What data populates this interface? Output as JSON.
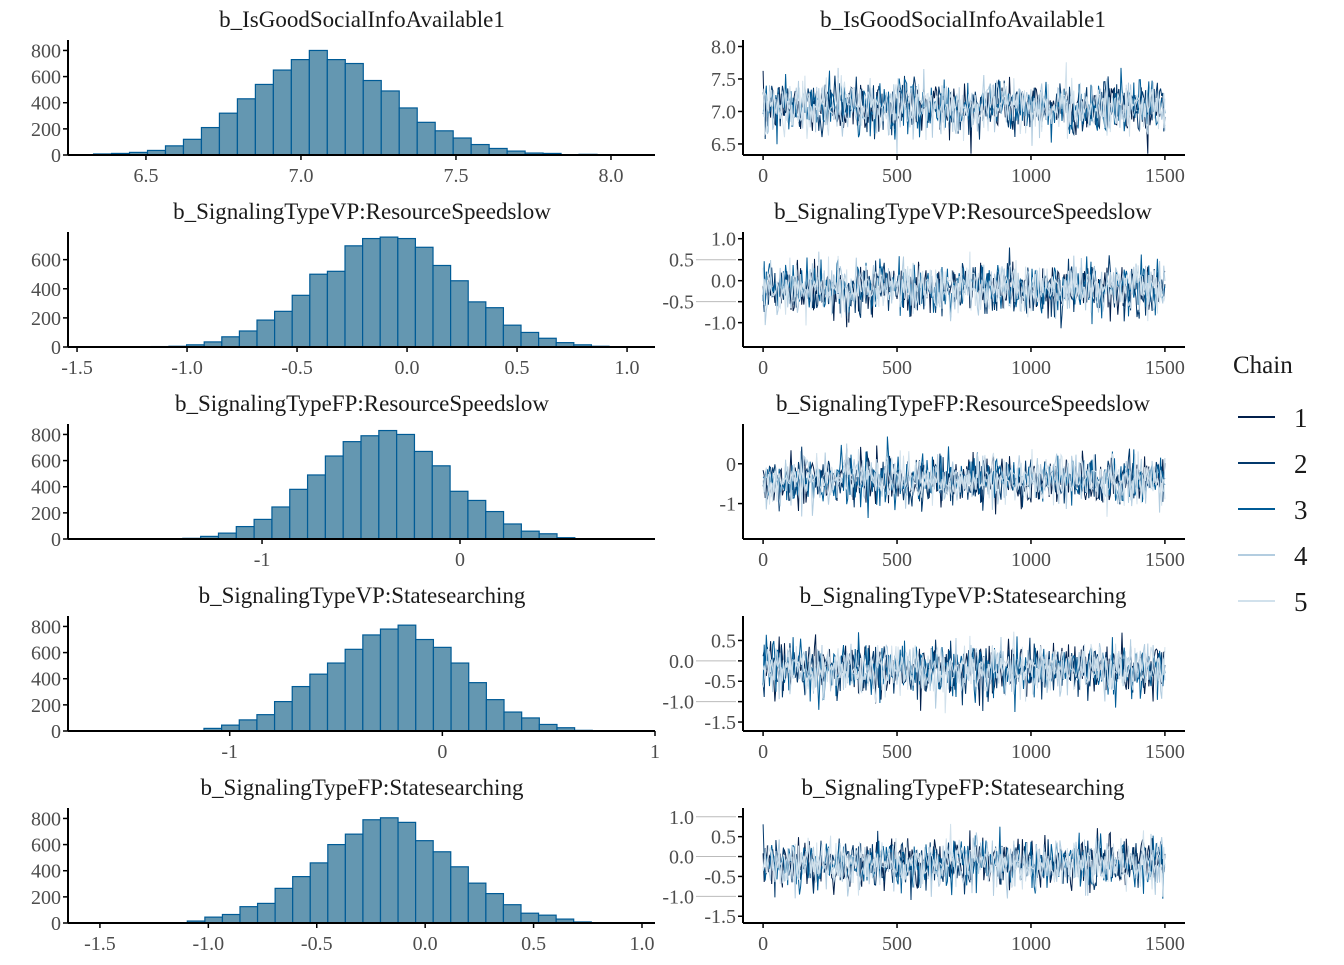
{
  "colors": {
    "hist_fill": "#6497b1",
    "hist_outline": "#005b96",
    "axis": "#000000",
    "chains": [
      "#011f4b",
      "#03396c",
      "#005b96",
      "#b3cde0",
      "#d1e1ec"
    ]
  },
  "legend": {
    "title": "Chain",
    "items": [
      "1",
      "2",
      "3",
      "4",
      "5"
    ],
    "placement": "right"
  },
  "chart_data": [
    {
      "type": "bar",
      "kind": "histogram",
      "title": "b_IsGoodSocialInfoAvailable1",
      "xlim": [
        6.255,
        8.142
      ],
      "xticks": [
        "6.5",
        "7.0",
        "7.5",
        "8.0"
      ],
      "ylim": [
        0,
        880
      ],
      "yticks": [
        "0",
        "200",
        "400",
        "600",
        "800"
      ],
      "bin_start": 6.331,
      "bin_width": 0.058,
      "counts": [
        8,
        12,
        20,
        35,
        70,
        120,
        210,
        320,
        430,
        540,
        650,
        730,
        800,
        730,
        700,
        570,
        490,
        360,
        250,
        185,
        130,
        80,
        50,
        30,
        15,
        12,
        3,
        5
      ]
    },
    {
      "type": "line",
      "kind": "trace",
      "title": "b_IsGoodSocialInfoAvailable1",
      "xlim": [
        -75,
        1575
      ],
      "xticks": [
        "0",
        "500",
        "1000",
        "1500"
      ],
      "ylim": [
        6.33,
        8.1
      ],
      "yticks": [
        "6.5",
        "7.0",
        "7.5",
        "8.0"
      ],
      "iterations": 1500,
      "chains": 5,
      "mean": 7.07,
      "sd": 0.2
    },
    {
      "type": "bar",
      "kind": "histogram",
      "title": "b_SignalingTypeVP:ResourceSpeedslow",
      "xlim": [
        -1.532,
        1.127
      ],
      "xticks": [
        "-1.5",
        "-1.0",
        "-0.5",
        "0.0",
        "0.5",
        "1.0"
      ],
      "ylim": [
        0,
        790
      ],
      "yticks": [
        "0",
        "200",
        "400",
        "600"
      ],
      "bin_start": -1.162,
      "bin_width": 0.08,
      "counts": [
        3,
        5,
        15,
        35,
        70,
        110,
        185,
        245,
        355,
        500,
        520,
        695,
        745,
        755,
        745,
        685,
        560,
        455,
        310,
        270,
        150,
        100,
        60,
        30,
        15,
        5
      ]
    },
    {
      "type": "line",
      "kind": "trace",
      "title": "b_SignalingTypeVP:ResourceSpeedslow",
      "xlim": [
        -75,
        1575
      ],
      "xticks": [
        "0",
        "500",
        "1000",
        "1500"
      ],
      "ylim": [
        -1.58,
        1.16
      ],
      "yticks": [
        "-1.0",
        "-0.5",
        "0.0",
        "0.5",
        "1.0"
      ],
      "iterations": 1500,
      "chains": 5,
      "mean": -0.17,
      "sd": 0.3
    },
    {
      "type": "bar",
      "kind": "histogram",
      "title": "b_SignalingTypeFP:ResourceSpeedslow",
      "xlim": [
        -1.97,
        0.985
      ],
      "xticks": [
        "-1",
        "0"
      ],
      "ylim": [
        0,
        880
      ],
      "yticks": [
        "0",
        "200",
        "400",
        "600",
        "800"
      ],
      "bin_start": -1.4,
      "bin_width": 0.09,
      "counts": [
        5,
        20,
        45,
        95,
        150,
        245,
        380,
        490,
        635,
        745,
        790,
        830,
        800,
        670,
        560,
        365,
        295,
        210,
        115,
        60,
        40,
        10
      ]
    },
    {
      "type": "line",
      "kind": "trace",
      "title": "b_SignalingTypeFP:ResourceSpeedslow",
      "xlim": [
        -75,
        1575
      ],
      "xticks": [
        "0",
        "500",
        "1000",
        "1500"
      ],
      "ylim": [
        -1.89,
        1.0
      ],
      "yticks": [
        "-1",
        "0"
      ],
      "iterations": 1500,
      "chains": 5,
      "mean": -0.4,
      "sd": 0.3
    },
    {
      "type": "bar",
      "kind": "histogram",
      "title": "b_SignalingTypeVP:Statesearching",
      "xlim": [
        -1.751,
        1.0
      ],
      "xticks": [
        "-1",
        "0",
        "1"
      ],
      "ylim": [
        0,
        880
      ],
      "yticks": [
        "0",
        "200",
        "400",
        "600",
        "800"
      ],
      "bin_start": -1.121,
      "bin_width": 0.083,
      "counts": [
        20,
        45,
        85,
        125,
        225,
        340,
        435,
        520,
        625,
        735,
        780,
        810,
        700,
        640,
        520,
        370,
        240,
        145,
        100,
        50,
        25,
        5,
        3
      ]
    },
    {
      "type": "line",
      "kind": "trace",
      "title": "b_SignalingTypeVP:Statesearching",
      "xlim": [
        -75,
        1575
      ],
      "xticks": [
        "0",
        "500",
        "1000",
        "1500"
      ],
      "ylim": [
        -1.72,
        1.1
      ],
      "yticks": [
        "-1.5",
        "-1.0",
        "-0.5",
        "0.0",
        "0.5"
      ],
      "iterations": 1500,
      "chains": 5,
      "mean": -0.2,
      "sd": 0.3
    },
    {
      "type": "bar",
      "kind": "histogram",
      "title": "b_SignalingTypeFP:Statesearching",
      "xlim": [
        -1.638,
        1.06
      ],
      "xticks": [
        "-1.5",
        "-1.0",
        "-0.5",
        "0.0",
        "0.5",
        "1.0"
      ],
      "ylim": [
        0,
        880
      ],
      "yticks": [
        "0",
        "200",
        "400",
        "600",
        "800"
      ],
      "bin_start": -1.097,
      "bin_width": 0.081,
      "counts": [
        15,
        45,
        65,
        125,
        150,
        265,
        355,
        460,
        600,
        680,
        790,
        805,
        770,
        630,
        545,
        430,
        305,
        225,
        140,
        75,
        60,
        30,
        8
      ]
    },
    {
      "type": "line",
      "kind": "trace",
      "title": "b_SignalingTypeFP:Statesearching",
      "xlim": [
        -75,
        1575
      ],
      "xticks": [
        "0",
        "500",
        "1000",
        "1500"
      ],
      "ylim": [
        -1.67,
        1.22
      ],
      "yticks": [
        "-1.5",
        "-1.0",
        "-0.5",
        "0.0",
        "0.5",
        "1.0"
      ],
      "iterations": 1500,
      "chains": 5,
      "mean": -0.17,
      "sd": 0.3
    }
  ]
}
